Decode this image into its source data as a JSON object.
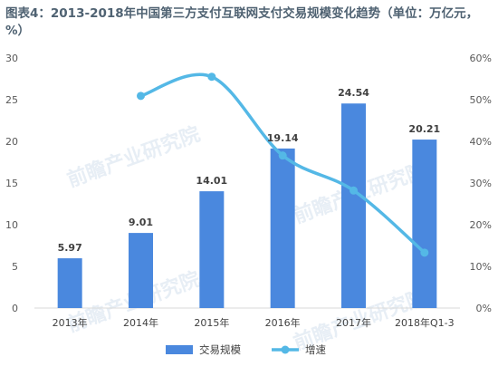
{
  "chart_data": {
    "type": "bar",
    "title": "图表4：2013-2018年中国第三方支付互联网支付交易规模变化趋势（单位：万亿元，%）",
    "categories": [
      "2013年",
      "2014年",
      "2015年",
      "2016年",
      "2017年",
      "2018年Q1-3"
    ],
    "series": [
      {
        "name": "交易规模",
        "type": "bar",
        "axis": "left",
        "color": "#4a88de",
        "values": [
          5.97,
          9.01,
          14.01,
          19.14,
          24.54,
          20.21
        ],
        "data_labels": [
          "5.97",
          "9.01",
          "14.01",
          "19.14",
          "24.54",
          "20.21"
        ]
      },
      {
        "name": "增速",
        "type": "line",
        "axis": "right",
        "color": "#54b8e6",
        "values": [
          null,
          50.9,
          55.5,
          36.6,
          28.2,
          13.3
        ]
      }
    ],
    "y_left": {
      "min": 0,
      "max": 30,
      "ticks": [
        "0",
        "5",
        "10",
        "15",
        "20",
        "25",
        "30"
      ]
    },
    "y_right": {
      "min": 0,
      "max": 60,
      "ticks": [
        "0%",
        "10%",
        "20%",
        "30%",
        "40%",
        "50%",
        "60%"
      ]
    },
    "grid": false,
    "legend_position": "bottom",
    "watermark": "前瞻产业研究院"
  }
}
